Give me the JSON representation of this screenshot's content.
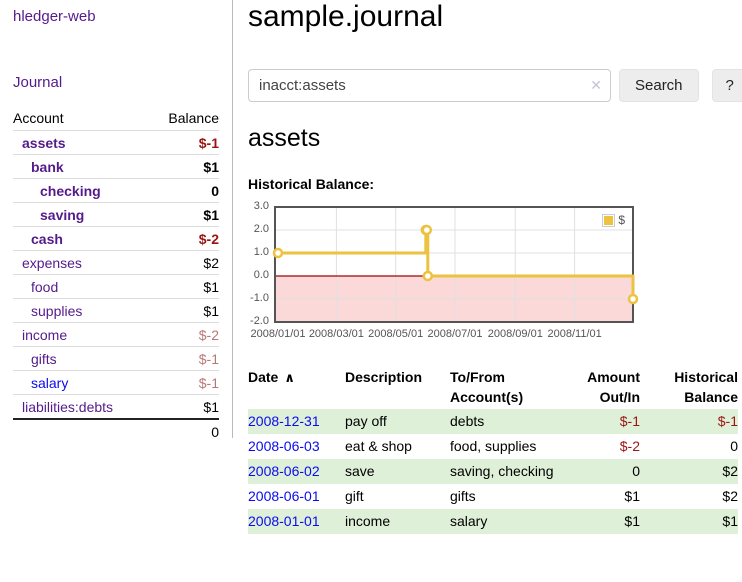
{
  "app": {
    "brand": "hledger-web",
    "nav_journal": "Journal"
  },
  "header": {
    "title": "sample.journal"
  },
  "search": {
    "value": "inacct:assets",
    "clear_icon": "✕",
    "button_label": "Search",
    "help_label": "?"
  },
  "account_page": {
    "heading": "assets",
    "chart_label": "Historical Balance:"
  },
  "sidebar": {
    "table_headers": {
      "account": "Account",
      "balance": "Balance"
    },
    "accounts": [
      {
        "name": "assets",
        "level": 1,
        "balance": "$-1",
        "bold": true,
        "name_color": "purple",
        "balance_color": "neg-strong"
      },
      {
        "name": "bank",
        "level": 2,
        "balance": "$1",
        "bold": true,
        "name_color": "purple",
        "balance_color": "black"
      },
      {
        "name": "checking",
        "level": 3,
        "balance": "0",
        "bold": true,
        "name_color": "purple",
        "balance_color": "black"
      },
      {
        "name": "saving",
        "level": 3,
        "balance": "$1",
        "bold": true,
        "name_color": "purple",
        "balance_color": "black"
      },
      {
        "name": "cash",
        "level": 2,
        "balance": "$-2",
        "bold": true,
        "name_color": "purple",
        "balance_color": "neg-strong"
      },
      {
        "name": "expenses",
        "level": 1,
        "balance": "$2",
        "bold": false,
        "name_color": "purple",
        "balance_color": "black"
      },
      {
        "name": "food",
        "level": 2,
        "balance": "$1",
        "bold": false,
        "name_color": "purple",
        "balance_color": "black"
      },
      {
        "name": "supplies",
        "level": 2,
        "balance": "$1",
        "bold": false,
        "name_color": "purple",
        "balance_color": "black"
      },
      {
        "name": "income",
        "level": 1,
        "balance": "$-2",
        "bold": false,
        "name_color": "purple",
        "balance_color": "neg-muted"
      },
      {
        "name": "gifts",
        "level": 2,
        "balance": "$-1",
        "bold": false,
        "name_color": "purple",
        "balance_color": "neg-muted"
      },
      {
        "name": "salary",
        "level": 2,
        "balance": "$-1",
        "bold": false,
        "name_color": "blue",
        "balance_color": "neg-muted"
      },
      {
        "name": "liabilities:debts",
        "level": 1,
        "balance": "$1",
        "bold": false,
        "name_color": "purple",
        "balance_color": "black"
      }
    ],
    "total_balance": "0"
  },
  "chart_data": {
    "type": "line",
    "step": true,
    "title": "Historical Balance",
    "series": [
      {
        "name": "$",
        "color": "#edc240",
        "points": [
          [
            "2008-01-01",
            1.0
          ],
          [
            "2008-06-01",
            2.0
          ],
          [
            "2008-06-02",
            2.0
          ],
          [
            "2008-06-03",
            0.0
          ],
          [
            "2008-12-31",
            -1.0
          ]
        ]
      }
    ],
    "xtick_labels": [
      "2008/01/01",
      "2008/03/01",
      "2008/05/01",
      "2008/07/01",
      "2008/09/01",
      "2008/11/01"
    ],
    "xtick_dates": [
      "2008-01-01",
      "2008-03-01",
      "2008-05-01",
      "2008-07-01",
      "2008-09-01",
      "2008-11-01"
    ],
    "yticks": [
      3.0,
      2.0,
      1.0,
      0.0,
      -1.0,
      -2.0
    ],
    "ylim": [
      -2.0,
      3.0
    ],
    "grid": true,
    "negative_region_color": "#fbd9d9",
    "zero_line_color": "#9e0508",
    "legend": {
      "label": "$",
      "position": "top-right"
    }
  },
  "register": {
    "columns": [
      "Date",
      "Description",
      "To/From Account(s)",
      "Amount Out/In",
      "Historical Balance"
    ],
    "sort_indicator": "∧",
    "rows": [
      {
        "date": "2008-12-31",
        "description": "pay off",
        "accounts": "debts",
        "amount": "$-1",
        "amount_negative": true,
        "balance": "$-1",
        "balance_negative": true,
        "highlighted": true
      },
      {
        "date": "2008-06-03",
        "description": "eat & shop",
        "accounts": "food, supplies",
        "amount": "$-2",
        "amount_negative": true,
        "balance": "0",
        "balance_negative": false,
        "highlighted": false
      },
      {
        "date": "2008-06-02",
        "description": "save",
        "accounts": "saving, checking",
        "amount": "0",
        "amount_negative": false,
        "balance": "$2",
        "balance_negative": false,
        "highlighted": true
      },
      {
        "date": "2008-06-01",
        "description": "gift",
        "accounts": "gifts",
        "amount": "$1",
        "amount_negative": false,
        "balance": "$2",
        "balance_negative": false,
        "highlighted": false
      },
      {
        "date": "2008-01-01",
        "description": "income",
        "accounts": "salary",
        "amount": "$1",
        "amount_negative": false,
        "balance": "$1",
        "balance_negative": false,
        "highlighted": true
      }
    ]
  },
  "colors": {
    "link_purple": "#551a8b",
    "link_blue": "#0b0bee",
    "negative_strong": "#9b1414",
    "negative_muted": "#b87878",
    "row_highlight_green": "#dff0d8",
    "chart_line": "#edc240",
    "chart_negative_fill": "#fbd9d9",
    "chart_zero_line": "#9e0508",
    "chart_border": "#545454"
  }
}
